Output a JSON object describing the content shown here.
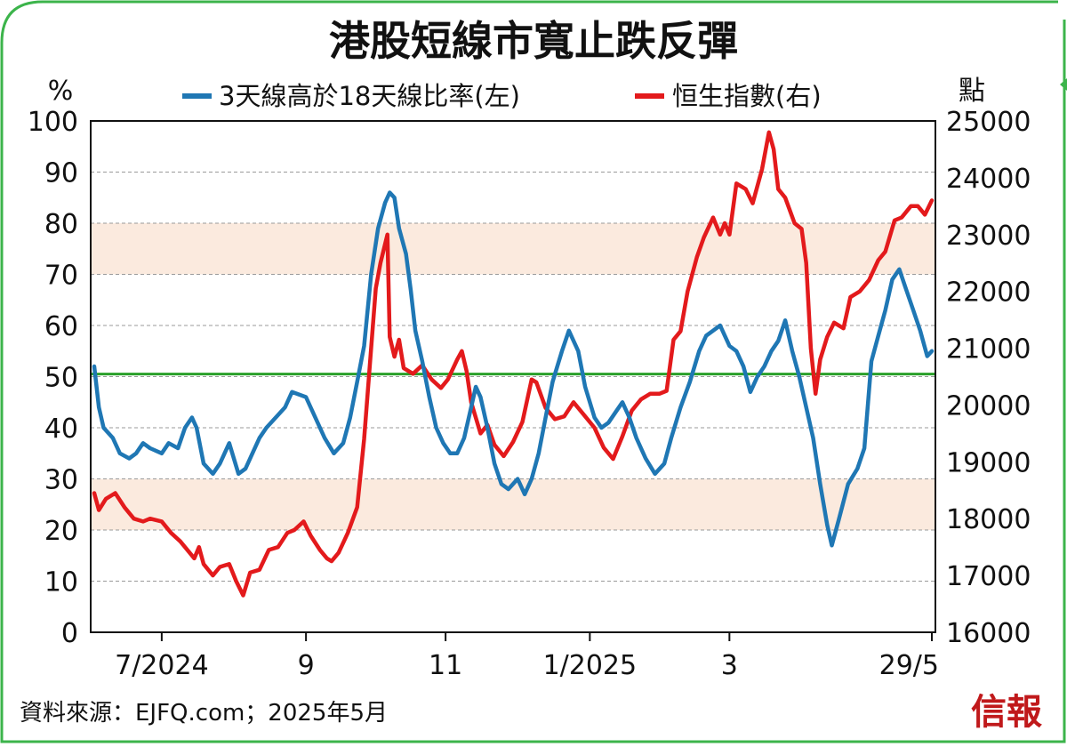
{
  "title": "港股短線市寬止跌反彈",
  "source": "資料來源：EJFQ.com；2025年5月",
  "logo_text": "信報",
  "colors": {
    "breadth": "#1f77b4",
    "hsi": "#e31a1c",
    "threshold": "#2aa02a",
    "band": "#fbeade",
    "frame": "#3cb44b",
    "grid": "#9a9a9a",
    "logo": "#c0191b"
  },
  "chart_data": {
    "type": "line",
    "title": "港股短線市寬止跌反彈",
    "y_left_unit": "%",
    "y_right_unit": "點",
    "y_left_range": [
      0,
      100
    ],
    "y_right_range": [
      16000,
      25000
    ],
    "y_left_ticks": [
      "0",
      "10",
      "20",
      "30",
      "40",
      "50",
      "60",
      "70",
      "80",
      "90",
      "100"
    ],
    "y_right_ticks": [
      "16000",
      "17000",
      "18000",
      "19000",
      "20000",
      "21000",
      "22000",
      "23000",
      "24000",
      "25000"
    ],
    "x_range": [
      "2024-06-03",
      "2025-05-29"
    ],
    "x_ticks": [
      {
        "date": "2024-07-02",
        "label": "7/2024"
      },
      {
        "date": "2024-09-02",
        "label": "9"
      },
      {
        "date": "2024-11-01",
        "label": "11"
      },
      {
        "date": "2025-01-02",
        "label": "1/2025"
      },
      {
        "date": "2025-03-03",
        "label": "3"
      },
      {
        "date": "2025-05-29",
        "label": "29/5"
      }
    ],
    "grid": "horizontal dashed",
    "legend_position": "top",
    "shaded_bands_left": [
      [
        20,
        30
      ],
      [
        70,
        80
      ]
    ],
    "reference_line_left": 50.5,
    "series": [
      {
        "name": "3天線高於18天線比率(左)",
        "axis": "left",
        "points": [
          [
            "2024-06-03",
            52
          ],
          [
            "2024-06-05",
            44
          ],
          [
            "2024-06-07",
            40
          ],
          [
            "2024-06-11",
            38
          ],
          [
            "2024-06-14",
            35
          ],
          [
            "2024-06-18",
            34
          ],
          [
            "2024-06-21",
            35
          ],
          [
            "2024-06-24",
            37
          ],
          [
            "2024-06-27",
            36
          ],
          [
            "2024-07-02",
            35
          ],
          [
            "2024-07-05",
            37
          ],
          [
            "2024-07-09",
            36
          ],
          [
            "2024-07-12",
            40
          ],
          [
            "2024-07-15",
            42
          ],
          [
            "2024-07-17",
            40
          ],
          [
            "2024-07-20",
            33
          ],
          [
            "2024-07-24",
            31
          ],
          [
            "2024-07-27",
            33
          ],
          [
            "2024-07-31",
            37
          ],
          [
            "2024-08-04",
            31
          ],
          [
            "2024-08-07",
            32
          ],
          [
            "2024-08-10",
            35
          ],
          [
            "2024-08-13",
            38
          ],
          [
            "2024-08-16",
            40
          ],
          [
            "2024-08-20",
            42
          ],
          [
            "2024-08-24",
            44
          ],
          [
            "2024-08-27",
            47
          ],
          [
            "2024-09-02",
            46
          ],
          [
            "2024-09-06",
            42
          ],
          [
            "2024-09-10",
            38
          ],
          [
            "2024-09-14",
            35
          ],
          [
            "2024-09-18",
            37
          ],
          [
            "2024-09-21",
            42
          ],
          [
            "2024-09-24",
            49
          ],
          [
            "2024-09-27",
            56
          ],
          [
            "2024-09-30",
            70
          ],
          [
            "2024-10-03",
            79
          ],
          [
            "2024-10-06",
            84
          ],
          [
            "2024-10-08",
            86
          ],
          [
            "2024-10-10",
            85
          ],
          [
            "2024-10-12",
            79
          ],
          [
            "2024-10-15",
            74
          ],
          [
            "2024-10-17",
            67
          ],
          [
            "2024-10-19",
            59
          ],
          [
            "2024-10-22",
            53
          ],
          [
            "2024-10-25",
            46
          ],
          [
            "2024-10-28",
            40
          ],
          [
            "2024-10-31",
            37
          ],
          [
            "2024-11-03",
            35
          ],
          [
            "2024-11-06",
            35
          ],
          [
            "2024-11-09",
            38
          ],
          [
            "2024-11-12",
            44
          ],
          [
            "2024-11-14",
            48
          ],
          [
            "2024-11-16",
            46
          ],
          [
            "2024-11-19",
            40
          ],
          [
            "2024-11-22",
            33
          ],
          [
            "2024-11-25",
            29
          ],
          [
            "2024-11-28",
            28
          ],
          [
            "2024-12-02",
            30
          ],
          [
            "2024-12-05",
            27
          ],
          [
            "2024-12-08",
            30
          ],
          [
            "2024-12-11",
            35
          ],
          [
            "2024-12-14",
            42
          ],
          [
            "2024-12-17",
            49
          ],
          [
            "2024-12-21",
            55
          ],
          [
            "2024-12-24",
            59
          ],
          [
            "2024-12-28",
            55
          ],
          [
            "2024-12-31",
            48
          ],
          [
            "2025-01-04",
            42
          ],
          [
            "2025-01-07",
            40
          ],
          [
            "2025-01-10",
            41
          ],
          [
            "2025-01-13",
            43
          ],
          [
            "2025-01-16",
            45
          ],
          [
            "2025-01-19",
            42
          ],
          [
            "2025-01-22",
            38
          ],
          [
            "2025-01-26",
            34
          ],
          [
            "2025-01-30",
            31
          ],
          [
            "2025-02-03",
            33
          ],
          [
            "2025-02-06",
            38
          ],
          [
            "2025-02-10",
            44
          ],
          [
            "2025-02-14",
            49
          ],
          [
            "2025-02-18",
            55
          ],
          [
            "2025-02-21",
            58
          ],
          [
            "2025-02-24",
            59
          ],
          [
            "2025-02-27",
            60
          ],
          [
            "2025-03-03",
            56
          ],
          [
            "2025-03-06",
            55
          ],
          [
            "2025-03-09",
            52
          ],
          [
            "2025-03-12",
            47
          ],
          [
            "2025-03-15",
            50
          ],
          [
            "2025-03-18",
            52
          ],
          [
            "2025-03-21",
            55
          ],
          [
            "2025-03-24",
            57
          ],
          [
            "2025-03-27",
            61
          ],
          [
            "2025-03-30",
            55
          ],
          [
            "2025-04-02",
            50
          ],
          [
            "2025-04-05",
            44
          ],
          [
            "2025-04-08",
            38
          ],
          [
            "2025-04-11",
            29
          ],
          [
            "2025-04-14",
            21
          ],
          [
            "2025-04-16",
            17
          ],
          [
            "2025-04-19",
            22
          ],
          [
            "2025-04-23",
            29
          ],
          [
            "2025-04-27",
            32
          ],
          [
            "2025-04-30",
            36
          ],
          [
            "2025-05-03",
            53
          ],
          [
            "2025-05-06",
            58
          ],
          [
            "2025-05-09",
            63
          ],
          [
            "2025-05-12",
            69
          ],
          [
            "2025-05-15",
            71
          ],
          [
            "2025-05-18",
            67
          ],
          [
            "2025-05-21",
            63
          ],
          [
            "2025-05-24",
            59
          ],
          [
            "2025-05-27",
            54
          ],
          [
            "2025-05-29",
            55
          ]
        ]
      },
      {
        "name": "恒生指數(右)",
        "axis": "right",
        "points": [
          [
            "2024-06-03",
            18450
          ],
          [
            "2024-06-05",
            18150
          ],
          [
            "2024-06-08",
            18350
          ],
          [
            "2024-06-12",
            18450
          ],
          [
            "2024-06-16",
            18200
          ],
          [
            "2024-06-20",
            18000
          ],
          [
            "2024-06-24",
            17950
          ],
          [
            "2024-06-27",
            18000
          ],
          [
            "2024-07-02",
            17950
          ],
          [
            "2024-07-06",
            17750
          ],
          [
            "2024-07-10",
            17600
          ],
          [
            "2024-07-14",
            17400
          ],
          [
            "2024-07-16",
            17300
          ],
          [
            "2024-07-18",
            17500
          ],
          [
            "2024-07-20",
            17200
          ],
          [
            "2024-07-24",
            17000
          ],
          [
            "2024-07-27",
            17150
          ],
          [
            "2024-07-31",
            17200
          ],
          [
            "2024-08-03",
            16900
          ],
          [
            "2024-08-06",
            16650
          ],
          [
            "2024-08-09",
            17050
          ],
          [
            "2024-08-13",
            17100
          ],
          [
            "2024-08-17",
            17450
          ],
          [
            "2024-08-21",
            17500
          ],
          [
            "2024-08-25",
            17750
          ],
          [
            "2024-08-28",
            17800
          ],
          [
            "2024-09-01",
            17950
          ],
          [
            "2024-09-04",
            17700
          ],
          [
            "2024-09-08",
            17450
          ],
          [
            "2024-09-11",
            17300
          ],
          [
            "2024-09-13",
            17250
          ],
          [
            "2024-09-16",
            17400
          ],
          [
            "2024-09-20",
            17750
          ],
          [
            "2024-09-24",
            18200
          ],
          [
            "2024-09-27",
            19400
          ],
          [
            "2024-09-30",
            21000
          ],
          [
            "2024-10-02",
            22050
          ],
          [
            "2024-10-04",
            22500
          ],
          [
            "2024-10-07",
            23000
          ],
          [
            "2024-10-08",
            21200
          ],
          [
            "2024-10-10",
            20850
          ],
          [
            "2024-10-12",
            21150
          ],
          [
            "2024-10-14",
            20650
          ],
          [
            "2024-10-18",
            20550
          ],
          [
            "2024-10-22",
            20700
          ],
          [
            "2024-10-26",
            20450
          ],
          [
            "2024-10-30",
            20300
          ],
          [
            "2024-11-02",
            20450
          ],
          [
            "2024-11-06",
            20800
          ],
          [
            "2024-11-08",
            20950
          ],
          [
            "2024-11-10",
            20600
          ],
          [
            "2024-11-12",
            20050
          ],
          [
            "2024-11-16",
            19500
          ],
          [
            "2024-11-19",
            19650
          ],
          [
            "2024-11-22",
            19300
          ],
          [
            "2024-11-26",
            19100
          ],
          [
            "2024-11-30",
            19350
          ],
          [
            "2024-12-04",
            19700
          ],
          [
            "2024-12-08",
            20450
          ],
          [
            "2024-12-10",
            20400
          ],
          [
            "2024-12-14",
            19950
          ],
          [
            "2024-12-18",
            19750
          ],
          [
            "2024-12-22",
            19800
          ],
          [
            "2024-12-26",
            20050
          ],
          [
            "2024-12-31",
            19800
          ],
          [
            "2025-01-04",
            19600
          ],
          [
            "2025-01-08",
            19250
          ],
          [
            "2025-01-12",
            19050
          ],
          [
            "2025-01-16",
            19450
          ],
          [
            "2025-01-20",
            19900
          ],
          [
            "2025-01-24",
            20100
          ],
          [
            "2025-01-28",
            20200
          ],
          [
            "2025-02-01",
            20200
          ],
          [
            "2025-02-04",
            20250
          ],
          [
            "2025-02-07",
            21150
          ],
          [
            "2025-02-10",
            21300
          ],
          [
            "2025-02-13",
            22000
          ],
          [
            "2025-02-17",
            22600
          ],
          [
            "2025-02-20",
            22950
          ],
          [
            "2025-02-24",
            23300
          ],
          [
            "2025-02-27",
            23000
          ],
          [
            "2025-03-01",
            23200
          ],
          [
            "2025-03-03",
            23000
          ],
          [
            "2025-03-06",
            23900
          ],
          [
            "2025-03-10",
            23800
          ],
          [
            "2025-03-13",
            23550
          ],
          [
            "2025-03-17",
            24150
          ],
          [
            "2025-03-20",
            24800
          ],
          [
            "2025-03-22",
            24500
          ],
          [
            "2025-03-24",
            23800
          ],
          [
            "2025-03-27",
            23650
          ],
          [
            "2025-03-31",
            23200
          ],
          [
            "2025-04-03",
            23100
          ],
          [
            "2025-04-05",
            22500
          ],
          [
            "2025-04-07",
            21000
          ],
          [
            "2025-04-09",
            20200
          ],
          [
            "2025-04-11",
            20800
          ],
          [
            "2025-04-14",
            21200
          ],
          [
            "2025-04-17",
            21450
          ],
          [
            "2025-04-21",
            21350
          ],
          [
            "2025-04-24",
            21900
          ],
          [
            "2025-04-28",
            22000
          ],
          [
            "2025-05-02",
            22200
          ],
          [
            "2025-05-06",
            22550
          ],
          [
            "2025-05-09",
            22700
          ],
          [
            "2025-05-13",
            23250
          ],
          [
            "2025-05-16",
            23300
          ],
          [
            "2025-05-20",
            23500
          ],
          [
            "2025-05-23",
            23500
          ],
          [
            "2025-05-26",
            23350
          ],
          [
            "2025-05-29",
            23600
          ]
        ]
      }
    ]
  }
}
